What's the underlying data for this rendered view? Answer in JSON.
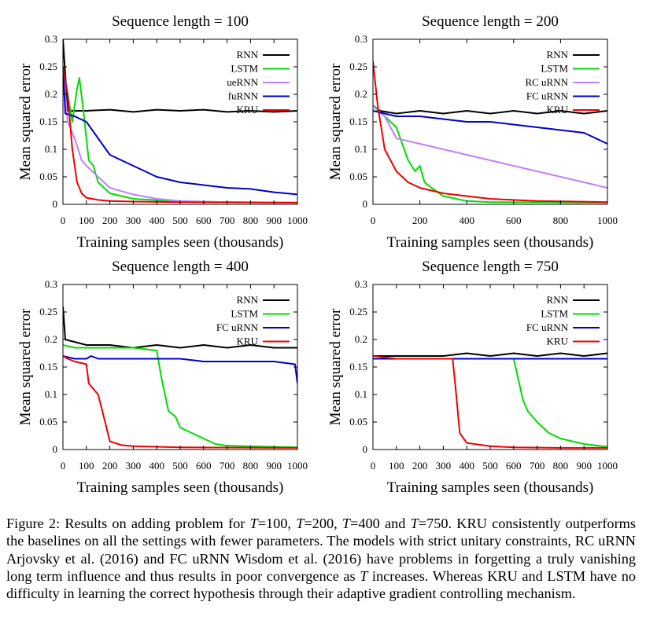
{
  "chart_data": [
    {
      "type": "line",
      "title": "Sequence length = 100",
      "xlabel": "Training samples seen (thousands)",
      "ylabel": "Mean squared error",
      "xlim": [
        0,
        1000
      ],
      "ylim": [
        0,
        0.3
      ],
      "xticks": [
        0,
        100,
        200,
        300,
        400,
        500,
        600,
        700,
        800,
        900,
        1000
      ],
      "yticks": [
        "0",
        "0.05",
        "0.1",
        "0.15",
        "0.2",
        "0.25",
        "0.3"
      ],
      "legend_position": "top-right",
      "grid": false,
      "series": [
        {
          "name": "RNN",
          "color": "#000000",
          "x": [
            0,
            20,
            50,
            100,
            200,
            300,
            400,
            500,
            600,
            700,
            800,
            900,
            1000
          ],
          "y": [
            0.3,
            0.17,
            0.17,
            0.17,
            0.172,
            0.168,
            0.172,
            0.17,
            0.172,
            0.168,
            0.17,
            0.168,
            0.17
          ]
        },
        {
          "name": "LSTM",
          "color": "#00dd00",
          "x": [
            0,
            20,
            40,
            60,
            70,
            90,
            110,
            130,
            150,
            200,
            300,
            500,
            1000
          ],
          "y": [
            0.25,
            0.2,
            0.15,
            0.21,
            0.23,
            0.16,
            0.08,
            0.07,
            0.04,
            0.02,
            0.01,
            0.005,
            0.003
          ]
        },
        {
          "name": "ueRNN",
          "color": "#c080ff",
          "x": [
            0,
            20,
            50,
            80,
            100,
            150,
            200,
            300,
            400,
            500,
            700,
            1000
          ],
          "y": [
            0.25,
            0.15,
            0.12,
            0.08,
            0.07,
            0.05,
            0.03,
            0.018,
            0.01,
            0.006,
            0.004,
            0.003
          ]
        },
        {
          "name": "fuRNN",
          "color": "#0000cc",
          "x": [
            0,
            10,
            50,
            100,
            150,
            200,
            300,
            400,
            500,
            600,
            700,
            800,
            900,
            1000
          ],
          "y": [
            0.25,
            0.165,
            0.16,
            0.15,
            0.12,
            0.09,
            0.07,
            0.05,
            0.04,
            0.035,
            0.03,
            0.028,
            0.022,
            0.018
          ]
        },
        {
          "name": "KRU",
          "color": "#ee0000",
          "x": [
            0,
            20,
            40,
            60,
            80,
            100,
            150,
            200,
            300,
            500,
            1000
          ],
          "y": [
            0.25,
            0.2,
            0.1,
            0.04,
            0.02,
            0.012,
            0.008,
            0.006,
            0.005,
            0.004,
            0.003
          ]
        }
      ]
    },
    {
      "type": "line",
      "title": "Sequence length = 200",
      "xlabel": "Training samples seen (thousands)",
      "ylabel": "Mean squared error",
      "xlim": [
        0,
        1000
      ],
      "ylim": [
        0,
        0.3
      ],
      "xticks": [
        0,
        200,
        400,
        600,
        800,
        1000
      ],
      "yticks": [
        "0",
        "0.05",
        "0.1",
        "0.15",
        "0.2",
        "0.25",
        "0.3"
      ],
      "legend_position": "top-right",
      "grid": false,
      "series": [
        {
          "name": "RNN",
          "color": "#000000",
          "x": [
            0,
            30,
            100,
            200,
            300,
            400,
            500,
            600,
            700,
            800,
            900,
            1000
          ],
          "y": [
            0.18,
            0.17,
            0.165,
            0.17,
            0.165,
            0.17,
            0.165,
            0.17,
            0.165,
            0.17,
            0.165,
            0.17
          ]
        },
        {
          "name": "LSTM",
          "color": "#00dd00",
          "x": [
            0,
            20,
            50,
            100,
            150,
            180,
            200,
            220,
            250,
            300,
            400,
            500,
            1000
          ],
          "y": [
            0.18,
            0.17,
            0.16,
            0.14,
            0.08,
            0.06,
            0.07,
            0.04,
            0.03,
            0.015,
            0.006,
            0.004,
            0.003
          ]
        },
        {
          "name": "RC uRNN",
          "color": "#c080ff",
          "x": [
            0,
            50,
            100,
            200,
            300,
            400,
            500,
            600,
            700,
            800,
            900,
            1000
          ],
          "y": [
            0.18,
            0.16,
            0.12,
            0.11,
            0.1,
            0.09,
            0.08,
            0.07,
            0.06,
            0.05,
            0.04,
            0.03
          ]
        },
        {
          "name": "FC uRNN",
          "color": "#0000cc",
          "x": [
            0,
            50,
            100,
            200,
            300,
            400,
            500,
            600,
            700,
            800,
            900,
            1000
          ],
          "y": [
            0.17,
            0.165,
            0.16,
            0.16,
            0.155,
            0.15,
            0.15,
            0.145,
            0.14,
            0.135,
            0.13,
            0.11
          ]
        },
        {
          "name": "KRU",
          "color": "#ee0000",
          "x": [
            0,
            20,
            50,
            100,
            150,
            200,
            300,
            500,
            700,
            1000
          ],
          "y": [
            0.26,
            0.18,
            0.1,
            0.06,
            0.04,
            0.03,
            0.02,
            0.01,
            0.006,
            0.004
          ]
        }
      ]
    },
    {
      "type": "line",
      "title": "Sequence length = 400",
      "xlabel": "Training samples seen (thousands)",
      "ylabel": "Mean squared error",
      "xlim": [
        0,
        1000
      ],
      "ylim": [
        0,
        0.3
      ],
      "xticks": [
        0,
        100,
        200,
        300,
        400,
        500,
        600,
        700,
        800,
        900,
        1000
      ],
      "yticks": [
        "0",
        "0.05",
        "0.1",
        "0.15",
        "0.2",
        "0.25",
        "0.3"
      ],
      "legend_position": "top-right",
      "grid": false,
      "series": [
        {
          "name": "RNN",
          "color": "#000000",
          "x": [
            0,
            10,
            100,
            200,
            300,
            400,
            500,
            600,
            700,
            800,
            900,
            1000
          ],
          "y": [
            0.26,
            0.2,
            0.19,
            0.19,
            0.185,
            0.19,
            0.185,
            0.19,
            0.185,
            0.19,
            0.185,
            0.185
          ]
        },
        {
          "name": "LSTM",
          "color": "#00dd00",
          "x": [
            0,
            50,
            100,
            200,
            300,
            400,
            420,
            450,
            480,
            500,
            550,
            600,
            650,
            700,
            1000
          ],
          "y": [
            0.19,
            0.185,
            0.185,
            0.185,
            0.185,
            0.18,
            0.13,
            0.07,
            0.06,
            0.04,
            0.03,
            0.02,
            0.01,
            0.007,
            0.004
          ]
        },
        {
          "name": "FC uRNN",
          "color": "#0000cc",
          "x": [
            0,
            50,
            100,
            120,
            150,
            200,
            300,
            400,
            500,
            600,
            700,
            800,
            900,
            990,
            1000
          ],
          "y": [
            0.17,
            0.165,
            0.165,
            0.17,
            0.165,
            0.165,
            0.165,
            0.165,
            0.165,
            0.16,
            0.16,
            0.16,
            0.16,
            0.155,
            0.12
          ]
        },
        {
          "name": "KRU",
          "color": "#ee0000",
          "x": [
            0,
            20,
            50,
            100,
            110,
            150,
            180,
            200,
            250,
            300,
            500,
            1000
          ],
          "y": [
            0.17,
            0.165,
            0.16,
            0.155,
            0.12,
            0.1,
            0.05,
            0.015,
            0.008,
            0.006,
            0.004,
            0.003
          ]
        }
      ]
    },
    {
      "type": "line",
      "title": "Sequence length = 750",
      "xlabel": "Training samples seen (thousands)",
      "ylabel": "Mean squared error",
      "xlim": [
        0,
        1000
      ],
      "ylim": [
        0,
        0.3
      ],
      "xticks": [
        0,
        100,
        200,
        300,
        400,
        500,
        600,
        700,
        800,
        900,
        1000
      ],
      "yticks": [
        "0",
        "0.05",
        "0.1",
        "0.15",
        "0.2",
        "0.25",
        "0.3"
      ],
      "legend_position": "top-right",
      "grid": false,
      "series": [
        {
          "name": "RNN",
          "color": "#000000",
          "x": [
            0,
            100,
            200,
            300,
            400,
            500,
            600,
            700,
            800,
            900,
            1000
          ],
          "y": [
            0.17,
            0.17,
            0.17,
            0.17,
            0.175,
            0.17,
            0.175,
            0.17,
            0.175,
            0.17,
            0.175
          ]
        },
        {
          "name": "LSTM",
          "color": "#00dd00",
          "x": [
            0,
            100,
            200,
            300,
            400,
            500,
            600,
            640,
            660,
            700,
            750,
            800,
            900,
            1000
          ],
          "y": [
            0.165,
            0.165,
            0.165,
            0.165,
            0.165,
            0.165,
            0.165,
            0.09,
            0.07,
            0.05,
            0.03,
            0.02,
            0.01,
            0.005
          ]
        },
        {
          "name": "FC uRNN",
          "color": "#0000cc",
          "x": [
            0,
            100,
            200,
            300,
            400,
            500,
            600,
            700,
            800,
            900,
            1000
          ],
          "y": [
            0.165,
            0.165,
            0.165,
            0.165,
            0.165,
            0.165,
            0.165,
            0.165,
            0.165,
            0.165,
            0.165
          ]
        },
        {
          "name": "KRU",
          "color": "#ee0000",
          "x": [
            0,
            100,
            200,
            300,
            340,
            355,
            370,
            400,
            500,
            600,
            800,
            1000
          ],
          "y": [
            0.17,
            0.165,
            0.165,
            0.165,
            0.165,
            0.1,
            0.03,
            0.012,
            0.006,
            0.004,
            0.003,
            0.003
          ]
        }
      ]
    }
  ],
  "caption": {
    "lead": "Figure 2: Results on adding problem for ",
    "t_symbol": "T",
    "s1": "=100, ",
    "s2": "=200, ",
    "s3": "=400 and ",
    "s4": "=750.",
    "rest": " KRU consistently outperforms the baselines on all the settings with fewer parameters. The models with strict unitary constraints, RC uRNN Arjovsky et al. (2016) and FC uRNN Wisdom et al. (2016) have problems in forgetting a truly vanishing long term influence and thus results in poor convergence as ",
    "rest2": " increases. Whereas KRU and LSTM have no difficulty in learning the correct hypothesis through their adaptive gradient controlling mechanism."
  }
}
